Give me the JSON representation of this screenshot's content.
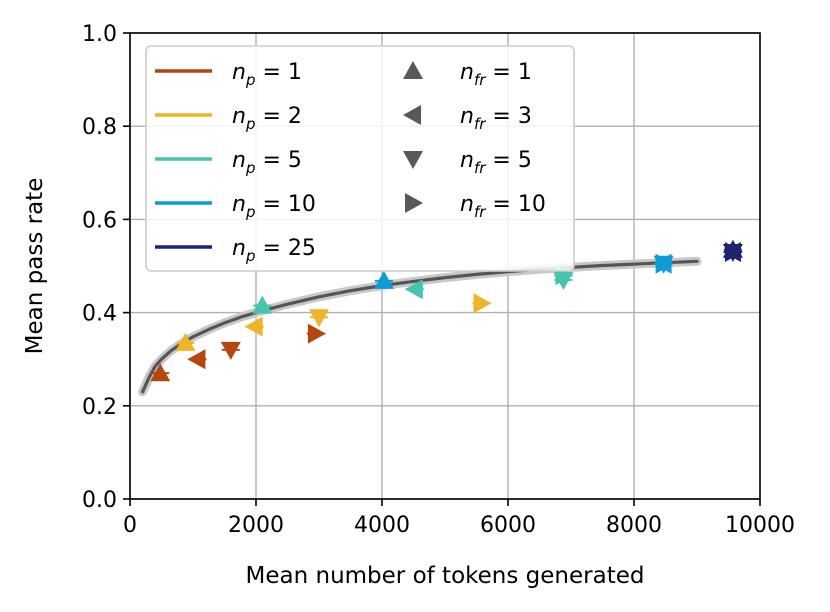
{
  "chart_data": {
    "type": "scatter",
    "title": "",
    "xlabel": "Mean number of tokens generated",
    "ylabel": "Mean pass rate",
    "xlim": [
      0,
      10000
    ],
    "ylim": [
      0.0,
      1.0
    ],
    "xticks": [
      "0",
      "2000",
      "4000",
      "6000",
      "8000",
      "10000"
    ],
    "yticks": [
      "0.0",
      "0.2",
      "0.4",
      "0.6",
      "0.8",
      "1.0"
    ],
    "grid": true,
    "legend_position": "top-left",
    "colors": {
      "np1": "#b5460f",
      "np2": "#f0b429",
      "np5": "#45c4b0",
      "np10": "#0f9ad8",
      "np25": "#1c2470",
      "fit": "#555555",
      "marker_legend": "#595959"
    },
    "legend": {
      "np": [
        {
          "var": "n",
          "sub": "p",
          "value": "1",
          "color_key": "np1"
        },
        {
          "var": "n",
          "sub": "p",
          "value": "2",
          "color_key": "np2"
        },
        {
          "var": "n",
          "sub": "p",
          "value": "5",
          "color_key": "np5"
        },
        {
          "var": "n",
          "sub": "p",
          "value": "10",
          "color_key": "np10"
        },
        {
          "var": "n",
          "sub": "p",
          "value": "25",
          "color_key": "np25"
        }
      ],
      "nfr": [
        {
          "var": "n",
          "sub": "fr",
          "value": "1",
          "marker": "triangle-up"
        },
        {
          "var": "n",
          "sub": "fr",
          "value": "3",
          "marker": "triangle-left"
        },
        {
          "var": "n",
          "sub": "fr",
          "value": "5",
          "marker": "triangle-down"
        },
        {
          "var": "n",
          "sub": "fr",
          "value": "10",
          "marker": "triangle-right"
        }
      ]
    },
    "series": [
      {
        "np": 1,
        "nfr": 1,
        "marker": "triangle-up",
        "color_key": "np1",
        "x": 480,
        "y": 0.27
      },
      {
        "np": 1,
        "nfr": 3,
        "marker": "triangle-left",
        "color_key": "np1",
        "x": 1070,
        "y": 0.3
      },
      {
        "np": 1,
        "nfr": 5,
        "marker": "triangle-down",
        "color_key": "np1",
        "x": 1600,
        "y": 0.32
      },
      {
        "np": 1,
        "nfr": 10,
        "marker": "triangle-right",
        "color_key": "np1",
        "x": 2950,
        "y": 0.355
      },
      {
        "np": 2,
        "nfr": 1,
        "marker": "triangle-up",
        "color_key": "np2",
        "x": 880,
        "y": 0.335
      },
      {
        "np": 2,
        "nfr": 3,
        "marker": "triangle-left",
        "color_key": "np2",
        "x": 1980,
        "y": 0.37
      },
      {
        "np": 2,
        "nfr": 5,
        "marker": "triangle-down",
        "color_key": "np2",
        "x": 3000,
        "y": 0.39
      },
      {
        "np": 2,
        "nfr": 10,
        "marker": "triangle-right",
        "color_key": "np2",
        "x": 5580,
        "y": 0.42
      },
      {
        "np": 5,
        "nfr": 1,
        "marker": "triangle-up",
        "color_key": "np5",
        "x": 2100,
        "y": 0.415
      },
      {
        "np": 5,
        "nfr": 3,
        "marker": "triangle-left",
        "color_key": "np5",
        "x": 4520,
        "y": 0.45
      },
      {
        "np": 5,
        "nfr": 5,
        "marker": "triangle-down",
        "color_key": "np5",
        "x": 6880,
        "y": 0.47
      },
      {
        "np": 5,
        "nfr": 10,
        "marker": "triangle-right",
        "color_key": "np5",
        "x": 6880,
        "y": 0.48
      },
      {
        "np": 10,
        "nfr": 1,
        "marker": "triangle-up",
        "color_key": "np10",
        "x": 4030,
        "y": 0.468
      },
      {
        "np": 10,
        "nfr": 3,
        "marker": "triangle-left",
        "color_key": "np10",
        "x": 8470,
        "y": 0.505
      },
      {
        "np": 10,
        "nfr": 5,
        "marker": "triangle-down",
        "color_key": "np10",
        "x": 8470,
        "y": 0.505
      },
      {
        "np": 10,
        "nfr": 10,
        "marker": "triangle-right",
        "color_key": "np10",
        "x": 8470,
        "y": 0.505
      },
      {
        "np": 25,
        "nfr": 1,
        "marker": "triangle-up",
        "color_key": "np25",
        "x": 9570,
        "y": 0.535
      },
      {
        "np": 25,
        "nfr": 3,
        "marker": "triangle-left",
        "color_key": "np25",
        "x": 9570,
        "y": 0.53
      },
      {
        "np": 25,
        "nfr": 5,
        "marker": "triangle-down",
        "color_key": "np25",
        "x": 9570,
        "y": 0.53
      },
      {
        "np": 25,
        "nfr": 10,
        "marker": "triangle-right",
        "color_key": "np25",
        "x": 9570,
        "y": 0.53
      }
    ],
    "fit_curve": {
      "x": [
        200,
        300,
        400,
        500,
        650,
        800,
        1000,
        1250,
        1500,
        1800,
        2100,
        2500,
        3000,
        3500,
        4000,
        4500,
        5000,
        5500,
        6000,
        6500,
        7000,
        7500,
        8000,
        8500,
        9000
      ],
      "y": [
        0.23,
        0.26,
        0.285,
        0.3,
        0.318,
        0.332,
        0.348,
        0.364,
        0.378,
        0.392,
        0.404,
        0.418,
        0.434,
        0.447,
        0.458,
        0.467,
        0.475,
        0.482,
        0.488,
        0.493,
        0.497,
        0.501,
        0.504,
        0.507,
        0.51
      ]
    }
  }
}
